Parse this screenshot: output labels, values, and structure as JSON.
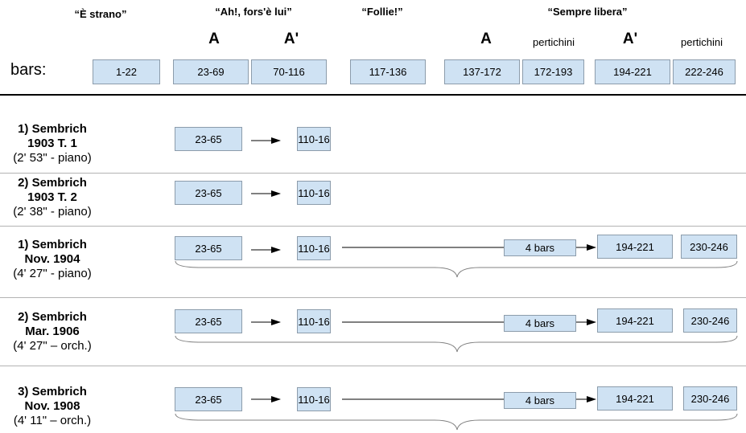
{
  "header": {
    "sections": [
      "“È strano”",
      "“Ah!, fors'è lui”",
      "“Follie!”",
      "“Sempre libera”"
    ],
    "letters": [
      "A",
      "A'",
      "A",
      "A'"
    ],
    "pertichini": [
      "pertichini",
      "pertichini"
    ],
    "bars_label": "bars:",
    "bar_ranges": [
      "1-22",
      "23-69",
      "70-116",
      "117-136",
      "137-172",
      "172-193",
      "194-221",
      "222-246"
    ]
  },
  "recordings": [
    {
      "line1": "1) Sembrich",
      "line2": "1903 T. 1",
      "line3": "(2' 53\" - piano)",
      "segments": [
        "23-65",
        "110-16"
      ]
    },
    {
      "line1": "2) Sembrich",
      "line2": "1903 T. 2",
      "line3": "(2' 38\" - piano)",
      "segments": [
        "23-65",
        "110-16"
      ]
    },
    {
      "line1": "1) Sembrich",
      "line2": "Nov. 1904",
      "line3": "(4' 27\" - piano)",
      "segments": [
        "23-65",
        "110-16",
        "4 bars",
        "194-221",
        "230-246"
      ]
    },
    {
      "line1": "2) Sembrich",
      "line2": "Mar. 1906",
      "line3": "(4' 27\" – orch.)",
      "segments": [
        "23-65",
        "110-16",
        "4 bars",
        "194-221",
        "230-246"
      ]
    },
    {
      "line1": "3) Sembrich",
      "line2": "Nov. 1908",
      "line3": "(4' 11\" – orch.)",
      "segments": [
        "23-65",
        "110-16",
        "4 bars",
        "194-221",
        "230-246"
      ]
    }
  ]
}
